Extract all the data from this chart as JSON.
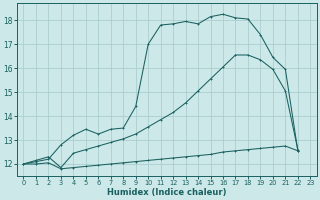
{
  "title": "",
  "xlabel": "Humidex (Indice chaleur)",
  "bg_color": "#cce8e8",
  "grid_color": "#aacccc",
  "line_color": "#1a6060",
  "xlim": [
    -0.5,
    23.5
  ],
  "ylim": [
    11.5,
    18.7
  ],
  "xticks": [
    0,
    1,
    2,
    3,
    4,
    5,
    6,
    7,
    8,
    9,
    10,
    11,
    12,
    13,
    14,
    15,
    16,
    17,
    18,
    19,
    20,
    21,
    22,
    23
  ],
  "yticks": [
    12,
    13,
    14,
    15,
    16,
    17,
    18
  ],
  "curve_top_x": [
    0,
    1,
    2,
    3,
    4,
    5,
    6,
    7,
    8,
    9,
    10,
    11,
    12,
    13,
    14,
    15,
    16,
    17,
    18,
    19,
    20,
    21,
    22
  ],
  "curve_top_y": [
    12.0,
    12.1,
    12.2,
    12.8,
    13.2,
    13.45,
    13.25,
    13.45,
    13.5,
    14.4,
    17.0,
    17.8,
    17.85,
    17.95,
    17.85,
    18.15,
    18.25,
    18.1,
    18.05,
    17.4,
    16.45,
    15.95,
    12.55
  ],
  "curve_mid_x": [
    0,
    1,
    2,
    3,
    4,
    5,
    6,
    7,
    8,
    9,
    10,
    11,
    12,
    13,
    14,
    15,
    16,
    17,
    18,
    19,
    20,
    21,
    22
  ],
  "curve_mid_y": [
    12.0,
    12.15,
    12.3,
    11.85,
    12.45,
    12.6,
    12.75,
    12.9,
    13.05,
    13.25,
    13.55,
    13.85,
    14.15,
    14.55,
    15.05,
    15.55,
    16.05,
    16.55,
    16.55,
    16.35,
    15.95,
    15.05,
    12.6
  ],
  "curve_bot_x": [
    0,
    1,
    2,
    3,
    4,
    5,
    6,
    7,
    8,
    9,
    10,
    11,
    12,
    13,
    14,
    15,
    16,
    17,
    18,
    19,
    20,
    21,
    22
  ],
  "curve_bot_y": [
    12.0,
    12.0,
    12.05,
    11.8,
    11.85,
    11.9,
    11.95,
    12.0,
    12.05,
    12.1,
    12.15,
    12.2,
    12.25,
    12.3,
    12.35,
    12.4,
    12.5,
    12.55,
    12.6,
    12.65,
    12.7,
    12.75,
    12.55
  ]
}
